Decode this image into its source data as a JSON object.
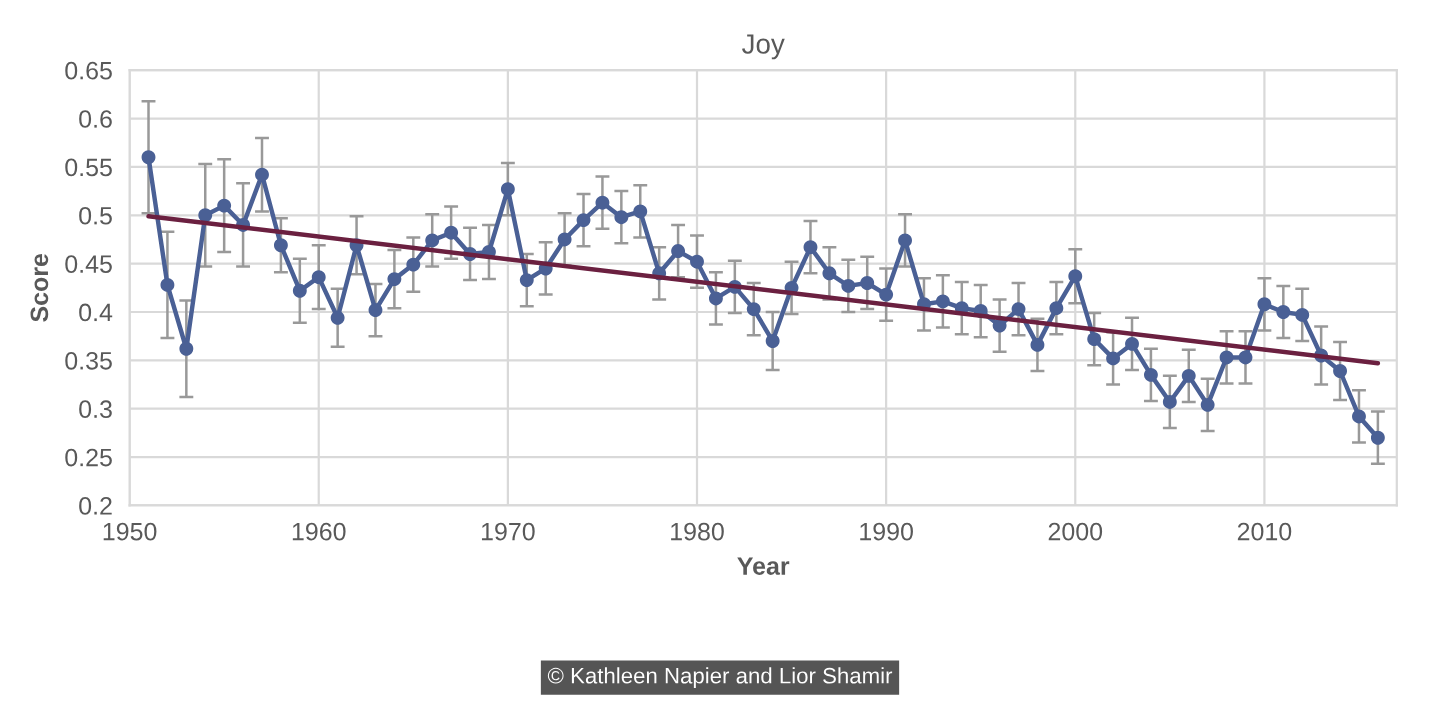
{
  "chart_data": {
    "type": "line",
    "title": "Joy",
    "xlabel": "Year",
    "ylabel": "Score",
    "xlim": [
      1950,
      2017
    ],
    "xticks": [
      1950,
      1960,
      1970,
      1980,
      1990,
      2000,
      2010
    ],
    "ylim": [
      0.2,
      0.65
    ],
    "yticks": [
      0.2,
      0.25,
      0.3,
      0.35,
      0.4,
      0.45,
      0.5,
      0.55,
      0.6,
      0.65
    ],
    "grid": true,
    "marker": "circle",
    "line_style": "solid",
    "series": [
      {
        "color": "#4a6095",
        "x": [
          1951,
          1952,
          1953,
          1954,
          1955,
          1956,
          1957,
          1958,
          1959,
          1960,
          1961,
          1962,
          1963,
          1964,
          1965,
          1966,
          1967,
          1968,
          1969,
          1970,
          1971,
          1972,
          1973,
          1974,
          1975,
          1976,
          1977,
          1978,
          1979,
          1980,
          1981,
          1982,
          1983,
          1984,
          1985,
          1986,
          1987,
          1988,
          1989,
          1990,
          1991,
          1992,
          1993,
          1994,
          1995,
          1996,
          1997,
          1998,
          1999,
          2000,
          2001,
          2002,
          2003,
          2004,
          2005,
          2006,
          2007,
          2008,
          2009,
          2010,
          2011,
          2012,
          2013,
          2014,
          2015,
          2016
        ],
        "values": [
          0.56,
          0.428,
          0.362,
          0.5,
          0.51,
          0.49,
          0.542,
          0.469,
          0.422,
          0.436,
          0.394,
          0.469,
          0.402,
          0.434,
          0.449,
          0.474,
          0.482,
          0.46,
          0.462,
          0.527,
          0.433,
          0.445,
          0.475,
          0.495,
          0.513,
          0.498,
          0.504,
          0.44,
          0.463,
          0.452,
          0.414,
          0.426,
          0.403,
          0.37,
          0.425,
          0.467,
          0.44,
          0.427,
          0.43,
          0.418,
          0.474,
          0.408,
          0.411,
          0.404,
          0.401,
          0.386,
          0.403,
          0.366,
          0.404,
          0.437,
          0.372,
          0.352,
          0.367,
          0.335,
          0.307,
          0.334,
          0.304,
          0.353,
          0.353,
          0.408,
          0.4,
          0.397,
          0.355,
          0.339,
          0.292,
          0.27
        ],
        "errors": [
          0.058,
          0.055,
          0.05,
          0.053,
          0.048,
          0.043,
          0.038,
          0.028,
          0.033,
          0.033,
          0.03,
          0.03,
          0.027,
          0.03,
          0.028,
          0.027,
          0.027,
          0.027,
          0.028,
          0.027,
          0.027,
          0.027,
          0.027,
          0.027,
          0.027,
          0.027,
          0.027,
          0.027,
          0.027,
          0.027,
          0.027,
          0.027,
          0.027,
          0.03,
          0.027,
          0.027,
          0.027,
          0.027,
          0.027,
          0.027,
          0.027,
          0.027,
          0.027,
          0.027,
          0.027,
          0.027,
          0.027,
          0.027,
          0.027,
          0.028,
          0.027,
          0.027,
          0.027,
          0.027,
          0.027,
          0.027,
          0.027,
          0.027,
          0.027,
          0.027,
          0.027,
          0.027,
          0.03,
          0.03,
          0.027,
          0.027
        ]
      },
      {
        "type": "line",
        "color": "#6b2040",
        "marker": "none",
        "x": [
          1951,
          2016
        ],
        "values": [
          0.499,
          0.347
        ]
      }
    ],
    "annotations": [
      "© Kathleen Napier and Lior Shamir"
    ]
  }
}
